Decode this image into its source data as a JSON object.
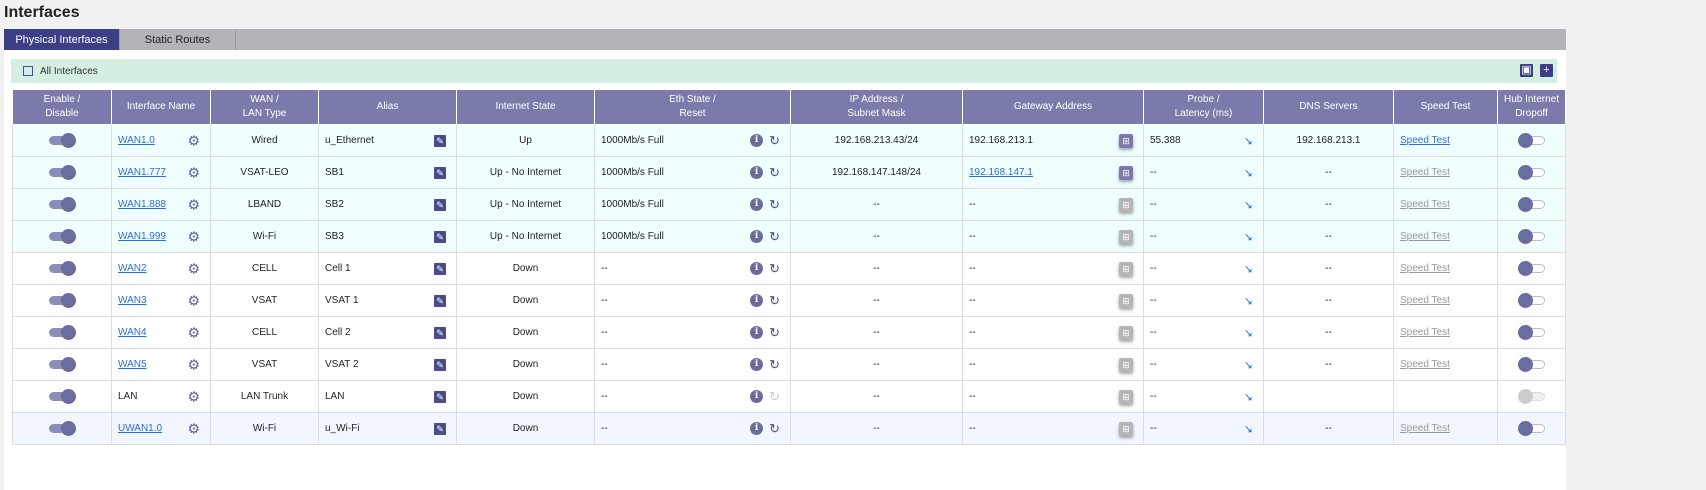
{
  "page_title": "Interfaces",
  "tabs": [
    {
      "label": "Physical Interfaces",
      "active": true
    },
    {
      "label": "Static Routes",
      "active": false
    }
  ],
  "filter": {
    "label": "All Interfaces",
    "checked": false
  },
  "toolbar": {
    "export_icon": "save-icon",
    "add_icon": "plus-icon"
  },
  "colors": {
    "accent": "#3d3f86",
    "header": "#7a7bab",
    "filter_bar": "#d4efe1",
    "link": "#2a6fd6"
  },
  "headers": [
    "Enable / Disable",
    "Interface Name",
    "WAN / LAN Type",
    "Alias",
    "Internet State",
    "Eth State / Reset",
    "IP Address / Subnet Mask",
    "Gateway Address",
    "Probe / Latency (ms)",
    "DNS Servers",
    "Speed Test",
    "Hub Internet Dropoff"
  ],
  "header_lines": [
    [
      "Enable /",
      "Disable"
    ],
    [
      "Interface Name"
    ],
    [
      "WAN /",
      "LAN Type"
    ],
    [
      "Alias"
    ],
    [
      "Internet State"
    ],
    [
      "Eth State /",
      "Reset"
    ],
    [
      "IP Address /",
      "Subnet Mask"
    ],
    [
      "Gateway Address"
    ],
    [
      "Probe /",
      "Latency (ms)"
    ],
    [
      "DNS Servers"
    ],
    [
      "Speed Test"
    ],
    [
      "Hub Internet",
      "Dropoff"
    ]
  ],
  "rows": [
    {
      "enabled": true,
      "name": "WAN1.0",
      "name_link": true,
      "type": "Wired",
      "alias": "u_Ethernet",
      "state": "Up",
      "eth": "1000Mb/s Full",
      "reset_enabled": true,
      "ip": "192.168.213.43/24",
      "gateway": "192.168.213.1",
      "gateway_link": false,
      "gateway_active": true,
      "latency": "55.388",
      "dns": "192.168.213.1",
      "speed_test": "Speed Test",
      "speed_active": true,
      "dropoff": "off",
      "bg": "#f0fefe"
    },
    {
      "enabled": true,
      "name": "WAN1.777",
      "name_link": true,
      "type": "VSAT-LEO",
      "alias": "SB1",
      "state": "Up - No Internet",
      "eth": "1000Mb/s Full",
      "reset_enabled": true,
      "ip": "192.168.147.148/24",
      "gateway": "192.168.147.1",
      "gateway_link": true,
      "gateway_active": true,
      "latency": "--",
      "dns": "--",
      "speed_test": "Speed Test",
      "speed_active": false,
      "dropoff": "off",
      "bg": "#f0fefe"
    },
    {
      "enabled": true,
      "name": "WAN1.888",
      "name_link": true,
      "type": "LBAND",
      "alias": "SB2",
      "state": "Up - No Internet",
      "eth": "1000Mb/s Full",
      "reset_enabled": true,
      "ip": "--",
      "gateway": "--",
      "gateway_link": false,
      "gateway_active": false,
      "latency": "--",
      "dns": "--",
      "speed_test": "Speed Test",
      "speed_active": false,
      "dropoff": "off",
      "bg": "#f0fefe"
    },
    {
      "enabled": true,
      "name": "WAN1.999",
      "name_link": true,
      "type": "Wi-Fi",
      "alias": "SB3",
      "state": "Up - No Internet",
      "eth": "1000Mb/s Full",
      "reset_enabled": true,
      "ip": "--",
      "gateway": "--",
      "gateway_link": false,
      "gateway_active": false,
      "latency": "--",
      "dns": "--",
      "speed_test": "Speed Test",
      "speed_active": false,
      "dropoff": "off",
      "bg": "#f0fefe"
    },
    {
      "enabled": true,
      "name": "WAN2",
      "name_link": true,
      "type": "CELL",
      "alias": "Cell 1",
      "state": "Down",
      "eth": "--",
      "reset_enabled": true,
      "ip": "--",
      "gateway": "--",
      "gateway_link": false,
      "gateway_active": false,
      "latency": "--",
      "dns": "--",
      "speed_test": "Speed Test",
      "speed_active": false,
      "dropoff": "off",
      "bg": "#ffffff"
    },
    {
      "enabled": true,
      "name": "WAN3",
      "name_link": true,
      "type": "VSAT",
      "alias": "VSAT 1",
      "state": "Down",
      "eth": "--",
      "reset_enabled": true,
      "ip": "--",
      "gateway": "--",
      "gateway_link": false,
      "gateway_active": false,
      "latency": "--",
      "dns": "--",
      "speed_test": "Speed Test",
      "speed_active": false,
      "dropoff": "off",
      "bg": "#ffffff"
    },
    {
      "enabled": true,
      "name": "WAN4",
      "name_link": true,
      "type": "CELL",
      "alias": "Cell 2",
      "state": "Down",
      "eth": "--",
      "reset_enabled": true,
      "ip": "--",
      "gateway": "--",
      "gateway_link": false,
      "gateway_active": false,
      "latency": "--",
      "dns": "--",
      "speed_test": "Speed Test",
      "speed_active": false,
      "dropoff": "off",
      "bg": "#ffffff"
    },
    {
      "enabled": true,
      "name": "WAN5",
      "name_link": true,
      "type": "VSAT",
      "alias": "VSAT 2",
      "state": "Down",
      "eth": "--",
      "reset_enabled": true,
      "ip": "--",
      "gateway": "--",
      "gateway_link": false,
      "gateway_active": false,
      "latency": "--",
      "dns": "--",
      "speed_test": "Speed Test",
      "speed_active": false,
      "dropoff": "off",
      "bg": "#ffffff"
    },
    {
      "enabled": true,
      "name": "LAN",
      "name_link": false,
      "type": "LAN Trunk",
      "alias": "LAN",
      "state": "Down",
      "eth": "--",
      "reset_enabled": false,
      "ip": "--",
      "gateway": "--",
      "gateway_link": false,
      "gateway_active": false,
      "latency": "--",
      "dns": "",
      "speed_test": "",
      "speed_active": false,
      "dropoff": "disabled",
      "bg": "#ffffff"
    },
    {
      "enabled": true,
      "name": "UWAN1.0",
      "name_link": true,
      "type": "Wi-Fi",
      "alias": "u_Wi-Fi",
      "state": "Down",
      "eth": "--",
      "reset_enabled": true,
      "ip": "--",
      "gateway": "--",
      "gateway_link": false,
      "gateway_active": false,
      "latency": "--",
      "dns": "--",
      "speed_test": "Speed Test",
      "speed_active": false,
      "dropoff": "off",
      "bg": "#f1f6ff"
    }
  ]
}
